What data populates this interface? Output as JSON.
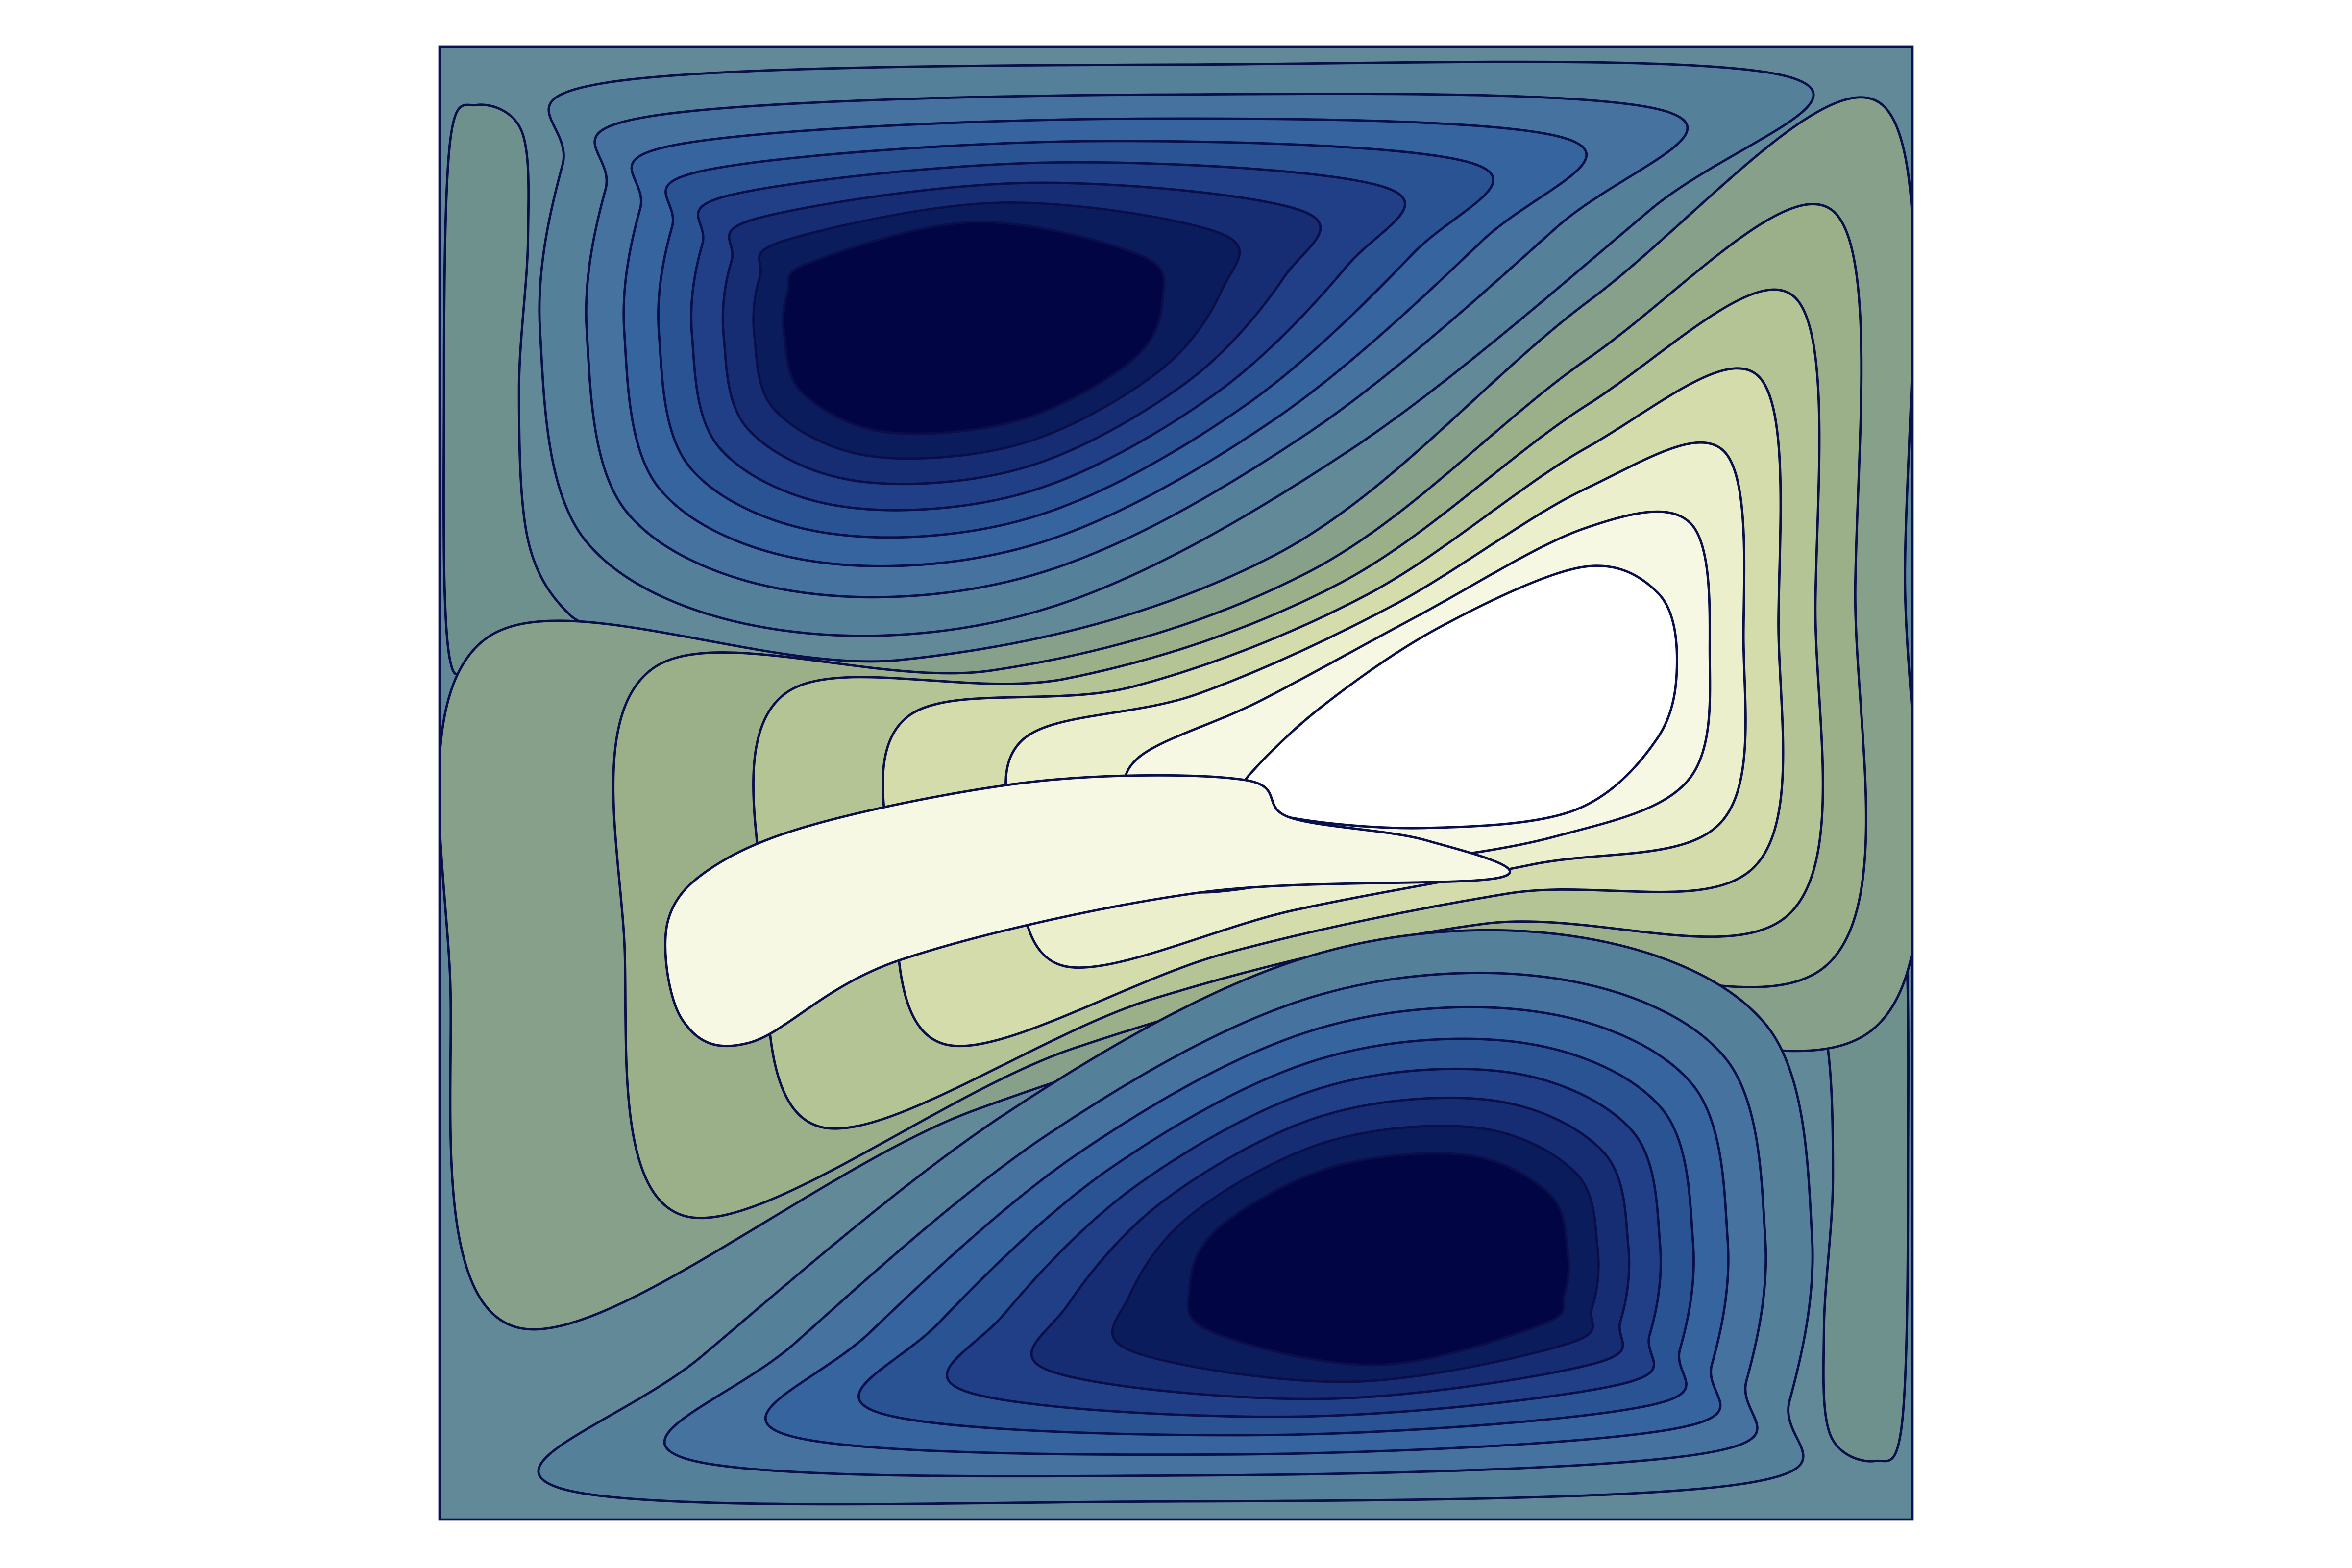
{
  "chart_data": {
    "type": "contour",
    "background": "#ffffff",
    "frame_color": "#0a1150",
    "line_color": "#0a0f4a",
    "outer_color": "#628997",
    "lobe_color": "#6e918d",
    "blue_levels": [
      "#55809a",
      "#4672a0",
      "#36649e",
      "#2a5394",
      "#203f87",
      "#162d74",
      "#0b1c5d",
      "#020544"
    ],
    "yellow_levels": [
      "#86a08a",
      "#9bb088",
      "#b5c495",
      "#d4dcab",
      "#ebefcb",
      "#f7f8e4",
      "#ffffff"
    ]
  }
}
